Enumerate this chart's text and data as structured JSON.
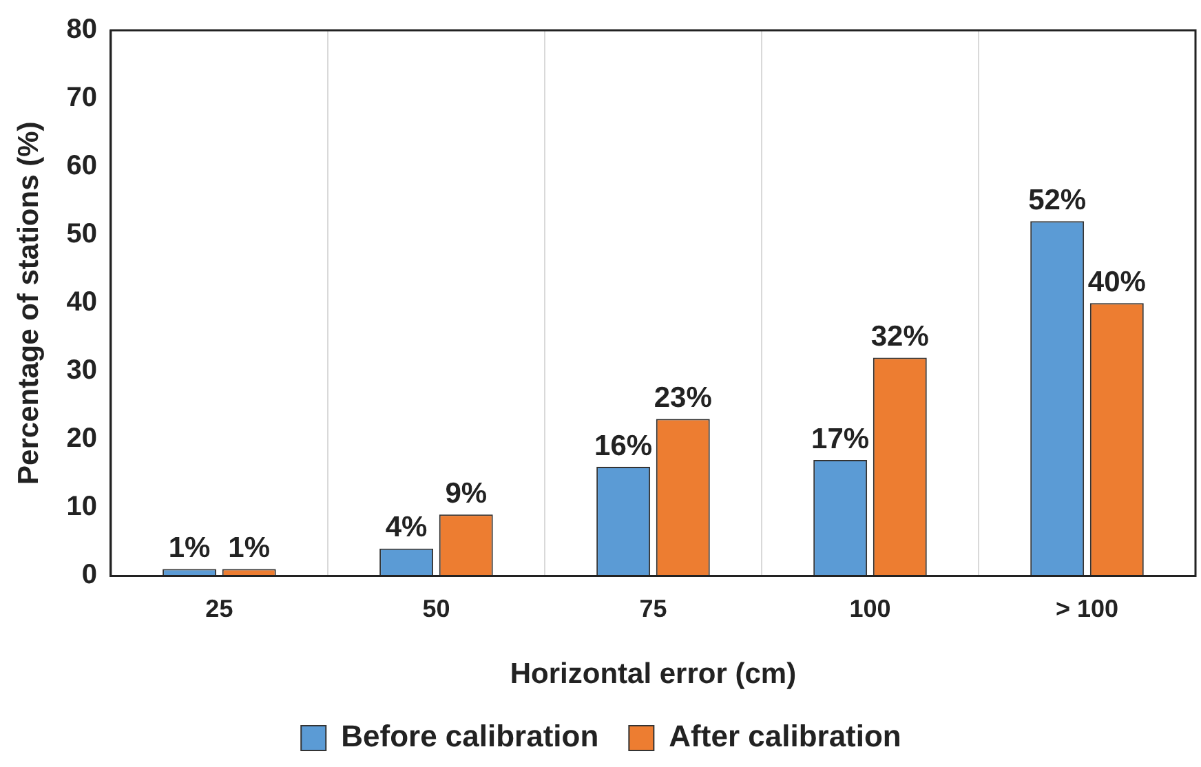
{
  "chart_data": {
    "type": "bar",
    "xlabel": "Horizontal error (cm)",
    "ylabel": "Percentage of stations (%)",
    "categories": [
      "25",
      "50",
      "75",
      "100",
      "> 100"
    ],
    "series": [
      {
        "name": "Before calibration",
        "color": "#5b9bd5",
        "values": [
          1,
          4,
          16,
          17,
          52
        ],
        "value_labels": [
          "1%",
          "4%",
          "16%",
          "17%",
          "52%"
        ]
      },
      {
        "name": "After calibration",
        "color": "#ed7d31",
        "values": [
          1,
          9,
          23,
          32,
          40
        ],
        "value_labels": [
          "1%",
          "9%",
          "23%",
          "32%",
          "40%"
        ]
      }
    ],
    "ylim": [
      0,
      80
    ],
    "yticks": [
      0,
      10,
      20,
      30,
      40,
      50,
      60,
      70,
      80
    ],
    "grid": "x",
    "legend": "bottom"
  }
}
